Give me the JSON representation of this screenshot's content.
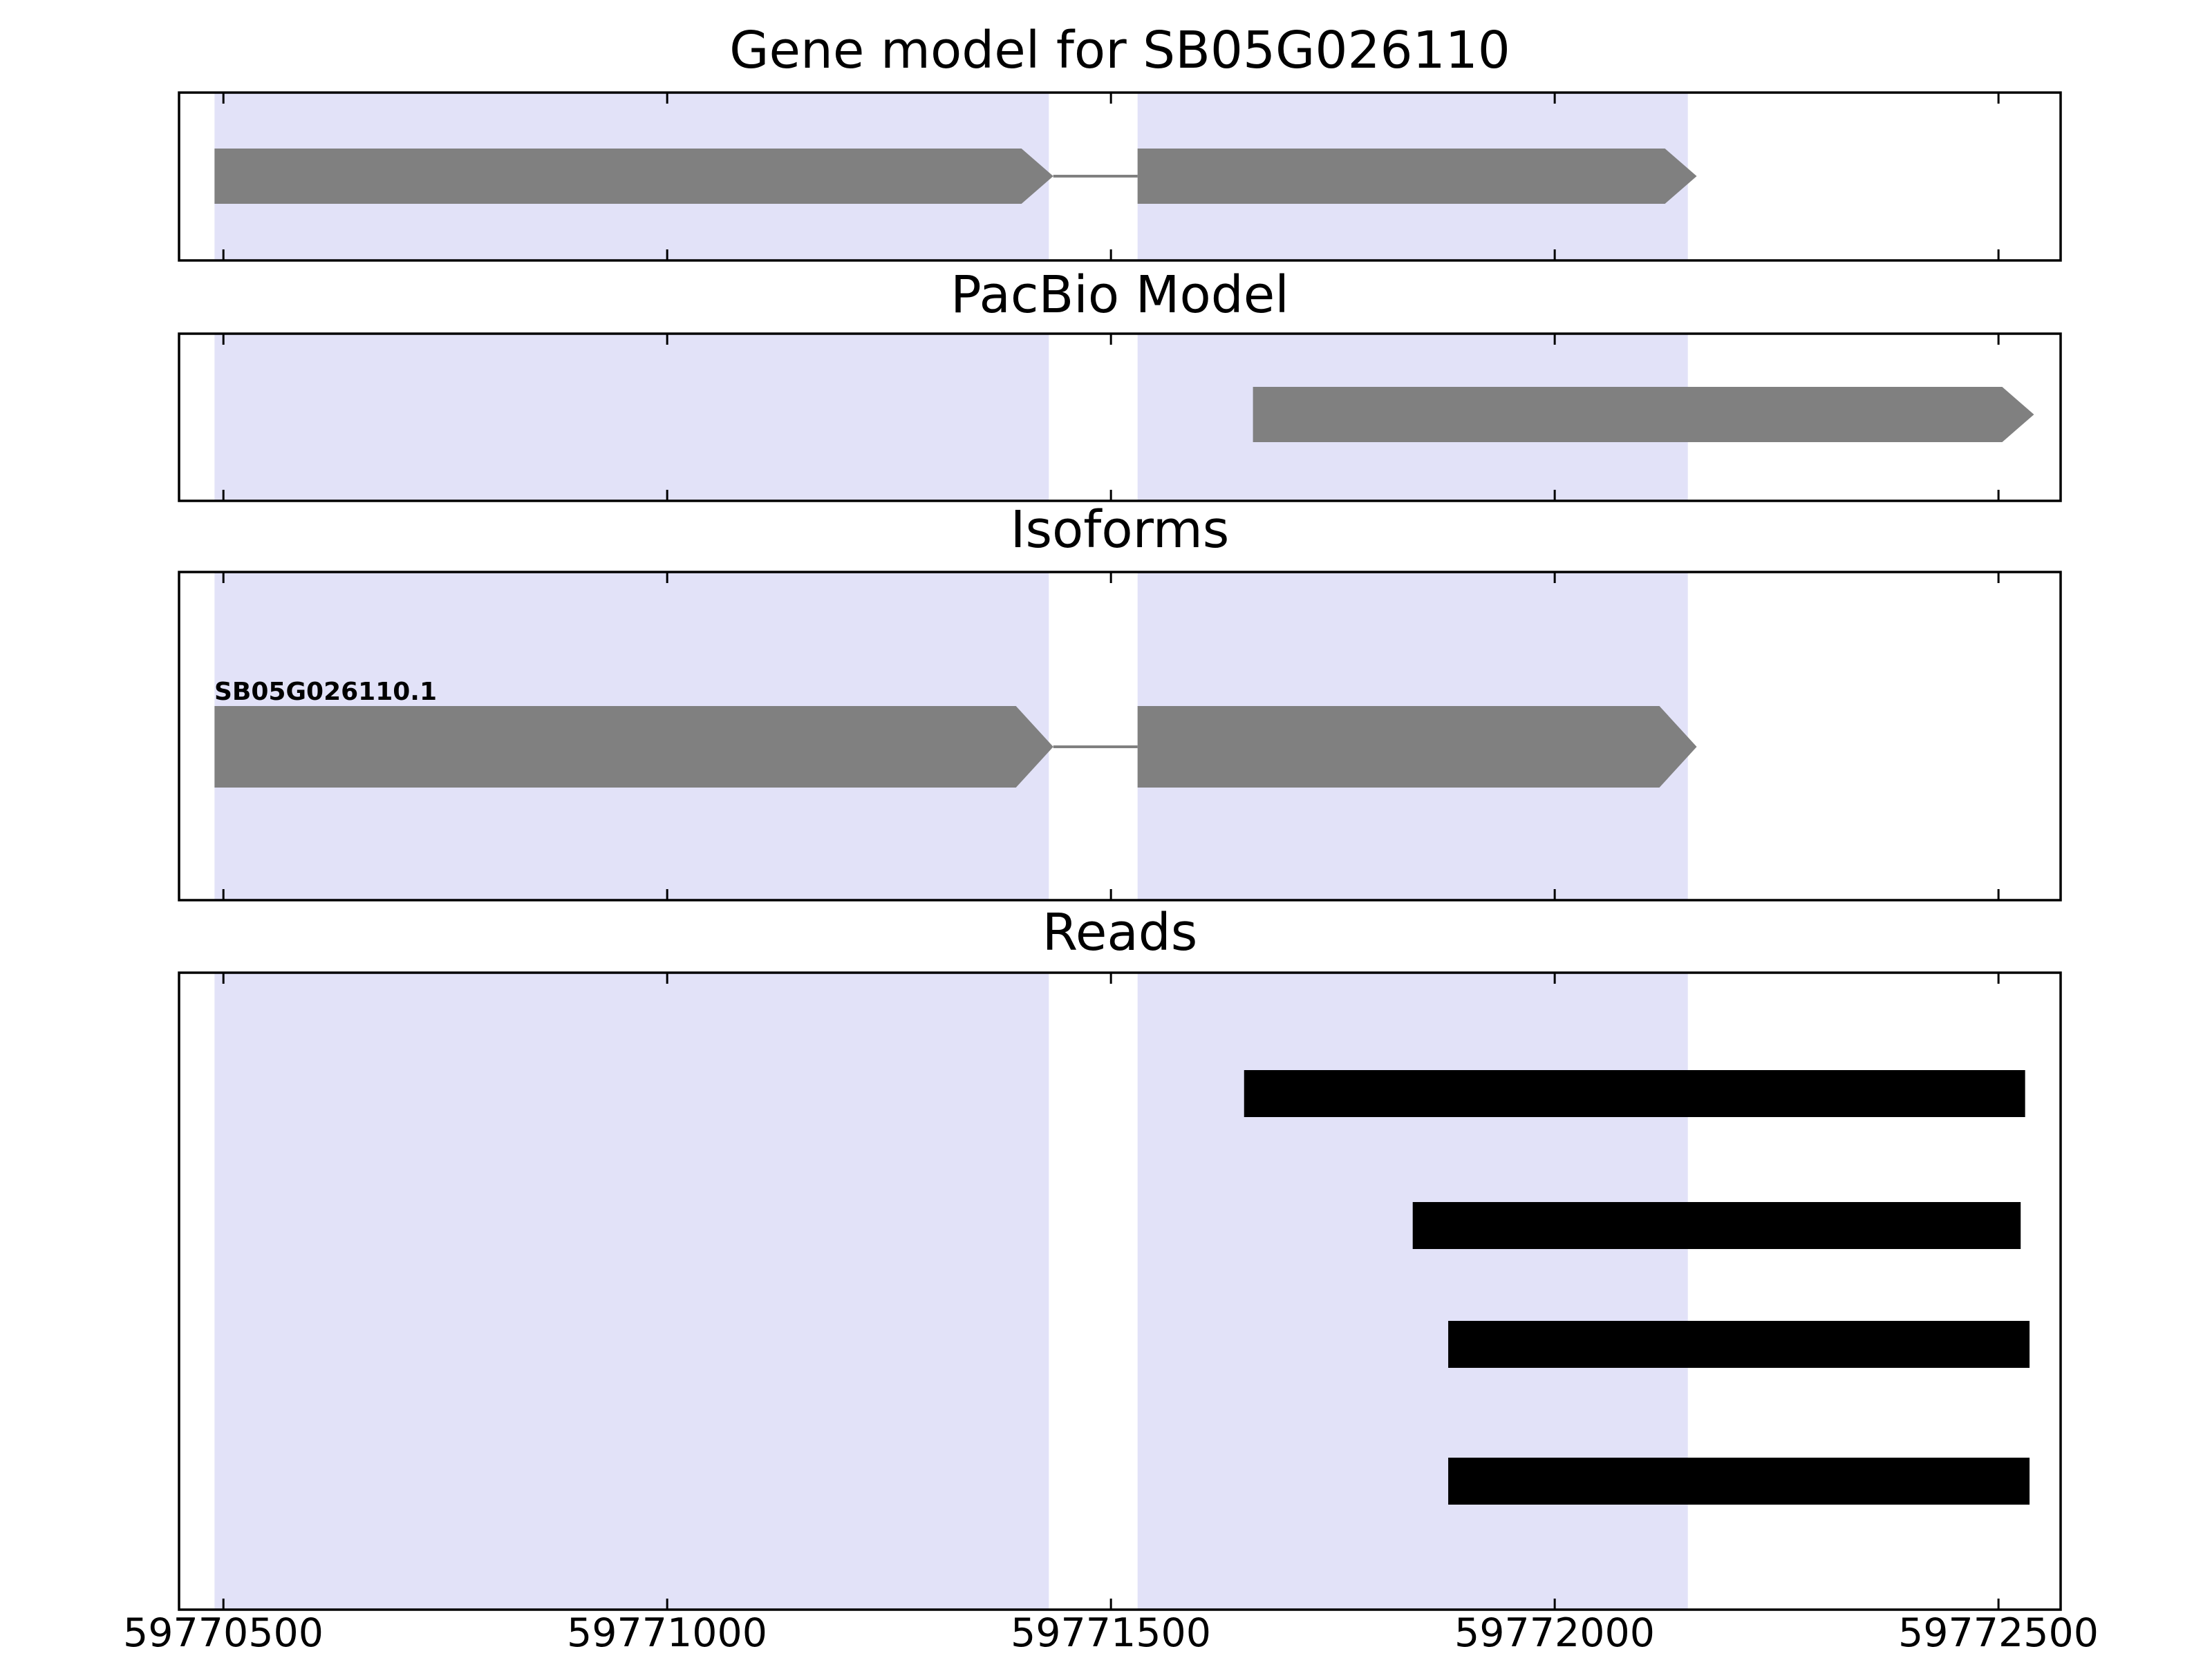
{
  "figure": {
    "background": "#FFFFFF",
    "colors": {
      "exon_fill": "#808080",
      "intron_line": "#808080",
      "highlight_band": "#E2E2F8",
      "read_fill": "#000000",
      "axis": "#000000",
      "text": "#000000"
    }
  },
  "chart_data": {
    "type": "genome-browser-tracks",
    "gene_id": "SB05G026110",
    "x_axis": {
      "min": 59770450,
      "max": 59772570,
      "ticks": [
        59770500,
        59771000,
        59771500,
        59772000,
        59772500
      ],
      "tick_labels": [
        "59770500",
        "59771000",
        "59771500",
        "59772000",
        "59772500"
      ]
    },
    "highlight_regions": [
      {
        "start": 59770490,
        "end": 59771430
      },
      {
        "start": 59771530,
        "end": 59772150
      }
    ],
    "panels": [
      {
        "id": "gene_model",
        "title": "Gene model for SB05G026110",
        "type": "transcript",
        "features": [
          {
            "label": "",
            "strand": "+",
            "exons": [
              {
                "start": 59770490,
                "end": 59771435
              },
              {
                "start": 59771530,
                "end": 59772160
              }
            ]
          }
        ]
      },
      {
        "id": "pacbio_model",
        "title": "PacBio Model",
        "type": "transcript",
        "features": [
          {
            "label": "",
            "strand": "+",
            "exons": [
              {
                "start": 59771660,
                "end": 59772540
              }
            ]
          }
        ]
      },
      {
        "id": "isoforms",
        "title": "Isoforms",
        "type": "transcript",
        "features": [
          {
            "label": "SB05G026110.1",
            "strand": "+",
            "exons": [
              {
                "start": 59770490,
                "end": 59771435
              },
              {
                "start": 59771530,
                "end": 59772160
              }
            ]
          }
        ]
      },
      {
        "id": "reads",
        "title": "Reads",
        "type": "reads",
        "reads": [
          {
            "start": 59771650,
            "end": 59772530
          },
          {
            "start": 59771840,
            "end": 59772525
          },
          {
            "start": 59771880,
            "end": 59772535
          },
          {
            "start": 59771880,
            "end": 59772535
          }
        ]
      }
    ]
  }
}
